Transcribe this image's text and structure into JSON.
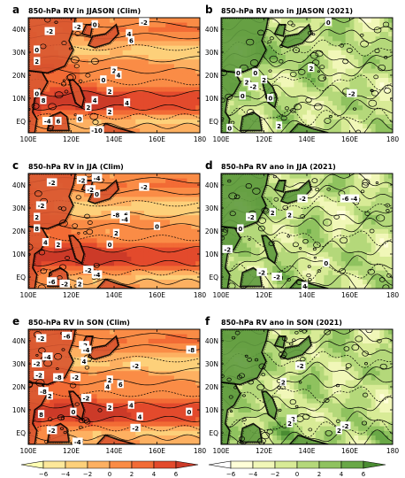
{
  "chart_data": [
    {
      "type": "heatmap",
      "panel": "a",
      "title": "850-hPa RV in JJASON (Clim)",
      "colormap": "warm",
      "x_ticks": [
        "100E",
        "120E",
        "140E",
        "160E",
        "180"
      ],
      "y_ticks": [
        "EQ",
        "10N",
        "20N",
        "30N",
        "40N"
      ],
      "xlim": [
        100,
        180
      ],
      "ylim": [
        -5,
        45
      ],
      "contour_labels": [
        {
          "text": "-2",
          "lon": 110,
          "lat": 39
        },
        {
          "text": "-2",
          "lon": 123,
          "lat": 41
        },
        {
          "text": "0",
          "lon": 131,
          "lat": 42
        },
        {
          "text": "-2",
          "lon": 154,
          "lat": 43
        },
        {
          "text": "4",
          "lon": 147,
          "lat": 38
        },
        {
          "text": "6",
          "lon": 148,
          "lat": 35
        },
        {
          "text": "0",
          "lon": 104,
          "lat": 31
        },
        {
          "text": "2",
          "lon": 104,
          "lat": 26
        },
        {
          "text": "0",
          "lon": 135,
          "lat": 18
        },
        {
          "text": "2",
          "lon": 140,
          "lat": 22
        },
        {
          "text": "4",
          "lon": 142,
          "lat": 20
        },
        {
          "text": "2",
          "lon": 138,
          "lat": 13
        },
        {
          "text": "4",
          "lon": 131,
          "lat": 9
        },
        {
          "text": "8",
          "lon": 107,
          "lat": 9
        },
        {
          "text": "2",
          "lon": 128,
          "lat": 6
        },
        {
          "text": "2",
          "lon": 138,
          "lat": 4
        },
        {
          "text": "4",
          "lon": 146,
          "lat": 8
        },
        {
          "text": "-4",
          "lon": 109,
          "lat": 0
        },
        {
          "text": "6",
          "lon": 114,
          "lat": 0
        },
        {
          "text": "0",
          "lon": 124,
          "lat": 1
        },
        {
          "text": "-10",
          "lon": 132,
          "lat": -4
        },
        {
          "text": "0",
          "lon": 104,
          "lat": 12
        }
      ]
    },
    {
      "type": "heatmap",
      "panel": "b",
      "title": "850-hPa RV ano in JJASON (2021)",
      "colormap": "green",
      "x_ticks": [
        "100E",
        "120E",
        "140E",
        "160E",
        "180"
      ],
      "y_ticks": [
        "EQ",
        "10N",
        "20N",
        "30N",
        "40N"
      ],
      "xlim": [
        100,
        180
      ],
      "ylim": [
        -5,
        45
      ],
      "contour_labels": [
        {
          "text": "0",
          "lon": 150,
          "lat": 43
        },
        {
          "text": "0",
          "lon": 108,
          "lat": 21
        },
        {
          "text": "0",
          "lon": 116,
          "lat": 21
        },
        {
          "text": "2",
          "lon": 112,
          "lat": 17
        },
        {
          "text": "2",
          "lon": 120,
          "lat": 18
        },
        {
          "text": "-2",
          "lon": 115,
          "lat": 15
        },
        {
          "text": "2",
          "lon": 142,
          "lat": 23
        },
        {
          "text": "0",
          "lon": 123,
          "lat": 10
        },
        {
          "text": "0",
          "lon": 110,
          "lat": 11
        },
        {
          "text": "-2",
          "lon": 161,
          "lat": 12
        },
        {
          "text": "2",
          "lon": 127,
          "lat": -2
        },
        {
          "text": "0",
          "lon": 104,
          "lat": -3
        }
      ]
    },
    {
      "type": "heatmap",
      "panel": "c",
      "title": "850-hPa RV in JJA (Clim)",
      "colormap": "warm",
      "x_ticks": [
        "100E",
        "120E",
        "140E",
        "160E",
        "180"
      ],
      "y_ticks": [
        "EQ",
        "10N",
        "20N",
        "30N",
        "40N"
      ],
      "xlim": [
        100,
        180
      ],
      "ylim": [
        -5,
        45
      ],
      "contour_labels": [
        {
          "text": "-2",
          "lon": 111,
          "lat": 41
        },
        {
          "text": "-2",
          "lon": 125,
          "lat": 42
        },
        {
          "text": "-4",
          "lon": 132,
          "lat": 43
        },
        {
          "text": "-2",
          "lon": 129,
          "lat": 38
        },
        {
          "text": "0",
          "lon": 132,
          "lat": 36
        },
        {
          "text": "-2",
          "lon": 154,
          "lat": 39
        },
        {
          "text": "-8",
          "lon": 141,
          "lat": 27
        },
        {
          "text": "-6",
          "lon": 145,
          "lat": 27
        },
        {
          "text": "-4",
          "lon": 145,
          "lat": 25
        },
        {
          "text": "0",
          "lon": 160,
          "lat": 22
        },
        {
          "text": "2",
          "lon": 141,
          "lat": 19
        },
        {
          "text": "0",
          "lon": 138,
          "lat": 14
        },
        {
          "text": "-2",
          "lon": 106,
          "lat": 31
        },
        {
          "text": "2",
          "lon": 104,
          "lat": 26
        },
        {
          "text": "8",
          "lon": 104,
          "lat": 21
        },
        {
          "text": "4",
          "lon": 108,
          "lat": 15
        },
        {
          "text": "2",
          "lon": 114,
          "lat": 14
        },
        {
          "text": "-2",
          "lon": 128,
          "lat": 3
        },
        {
          "text": "-4",
          "lon": 132,
          "lat": 1
        },
        {
          "text": "-6",
          "lon": 111,
          "lat": -2
        },
        {
          "text": "-2",
          "lon": 117,
          "lat": -3
        },
        {
          "text": "2",
          "lon": 124,
          "lat": -3
        }
      ]
    },
    {
      "type": "heatmap",
      "panel": "d",
      "title": "850-hPa RV ano in JJA (2021)",
      "colormap": "green",
      "x_ticks": [
        "100E",
        "120E",
        "140E",
        "160E",
        "180"
      ],
      "y_ticks": [
        "EQ",
        "10N",
        "20N",
        "30N",
        "40N"
      ],
      "xlim": [
        100,
        180
      ],
      "ylim": [
        -5,
        45
      ],
      "contour_labels": [
        {
          "text": "-2",
          "lon": 138,
          "lat": 34
        },
        {
          "text": "2",
          "lon": 124,
          "lat": 28
        },
        {
          "text": "0",
          "lon": 109,
          "lat": 21
        },
        {
          "text": "-2",
          "lon": 114,
          "lat": 26
        },
        {
          "text": "-6",
          "lon": 158,
          "lat": 34
        },
        {
          "text": "-4",
          "lon": 162,
          "lat": 34
        },
        {
          "text": "2",
          "lon": 132,
          "lat": 27
        },
        {
          "text": "-2",
          "lon": 103,
          "lat": 12
        },
        {
          "text": "0",
          "lon": 149,
          "lat": 6
        },
        {
          "text": "-2",
          "lon": 119,
          "lat": 2
        },
        {
          "text": "-2",
          "lon": 126,
          "lat": 0
        },
        {
          "text": "4",
          "lon": 139,
          "lat": -4
        }
      ]
    },
    {
      "type": "heatmap",
      "panel": "e",
      "title": "850-hPa RV in SON (Clim)",
      "colormap": "warm",
      "x_ticks": [
        "100E",
        "120E",
        "140E",
        "160E",
        "180"
      ],
      "y_ticks": [
        "EQ",
        "10N",
        "20N",
        "30N",
        "40N"
      ],
      "xlim": [
        100,
        180
      ],
      "ylim": [
        -5,
        45
      ],
      "contour_labels": [
        {
          "text": "-2",
          "lon": 106,
          "lat": 41
        },
        {
          "text": "-6",
          "lon": 118,
          "lat": 42
        },
        {
          "text": "-2",
          "lon": 126,
          "lat": 38
        },
        {
          "text": "-4",
          "lon": 127,
          "lat": 36
        },
        {
          "text": "-4",
          "lon": 109,
          "lat": 33
        },
        {
          "text": "-2",
          "lon": 104,
          "lat": 30
        },
        {
          "text": "4",
          "lon": 126,
          "lat": 31
        },
        {
          "text": "-8",
          "lon": 176,
          "lat": 36
        },
        {
          "text": "-2",
          "lon": 150,
          "lat": 29
        },
        {
          "text": "-2",
          "lon": 105,
          "lat": 25
        },
        {
          "text": "-8",
          "lon": 114,
          "lat": 24
        },
        {
          "text": "-2",
          "lon": 122,
          "lat": 24
        },
        {
          "text": "2",
          "lon": 138,
          "lat": 23
        },
        {
          "text": "4",
          "lon": 137,
          "lat": 20
        },
        {
          "text": "6",
          "lon": 143,
          "lat": 21
        },
        {
          "text": "-8",
          "lon": 107,
          "lat": 18
        },
        {
          "text": "2",
          "lon": 110,
          "lat": 16
        },
        {
          "text": "-2",
          "lon": 127,
          "lat": 15
        },
        {
          "text": "8",
          "lon": 106,
          "lat": 8
        },
        {
          "text": "0",
          "lon": 121,
          "lat": 9
        },
        {
          "text": "2",
          "lon": 138,
          "lat": 11
        },
        {
          "text": "4",
          "lon": 148,
          "lat": 12
        },
        {
          "text": "0",
          "lon": 175,
          "lat": 9
        },
        {
          "text": "4",
          "lon": 152,
          "lat": 7
        },
        {
          "text": "-2",
          "lon": 150,
          "lat": 2
        },
        {
          "text": "-2",
          "lon": 111,
          "lat": 1
        },
        {
          "text": "-4",
          "lon": 123,
          "lat": -4
        }
      ]
    },
    {
      "type": "heatmap",
      "panel": "f",
      "title": "850-hPa RV ano in SON (2021)",
      "colormap": "green",
      "x_ticks": [
        "100E",
        "120E",
        "140E",
        "160E",
        "180"
      ],
      "y_ticks": [
        "EQ",
        "10N",
        "20N",
        "30N",
        "40N"
      ],
      "xlim": [
        100,
        180
      ],
      "ylim": [
        -5,
        45
      ],
      "contour_labels": [
        {
          "text": "-2",
          "lon": 137,
          "lat": 29
        },
        {
          "text": "2",
          "lon": 129,
          "lat": 22
        },
        {
          "text": "-2",
          "lon": 133,
          "lat": 6
        },
        {
          "text": "2",
          "lon": 132,
          "lat": 4
        },
        {
          "text": "-2",
          "lon": 158,
          "lat": 3
        },
        {
          "text": "2",
          "lon": 155,
          "lat": 1
        }
      ]
    }
  ],
  "colorbars": [
    {
      "colormap": "warm",
      "labels": [
        "-6",
        "-4",
        "-2",
        "0",
        "2",
        "4",
        "6"
      ],
      "colors": [
        "#ffffb2",
        "#fde89a",
        "#fdd07a",
        "#fdb061",
        "#fa8c46",
        "#f26b35",
        "#e34a2c",
        "#cc3a28"
      ]
    },
    {
      "colormap": "green",
      "labels": [
        "-6",
        "-4",
        "-2",
        "0",
        "2",
        "4",
        "6"
      ],
      "colors": [
        "#ffffff",
        "#fffed8",
        "#f1f7b8",
        "#d8eb96",
        "#b4d87a",
        "#8fc25f",
        "#69a847",
        "#4a8c32"
      ]
    }
  ]
}
